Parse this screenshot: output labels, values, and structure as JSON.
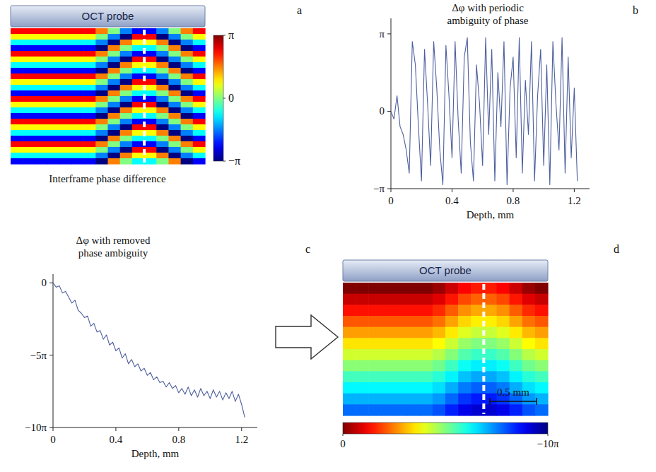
{
  "chart_data": [
    {
      "type": "heatmap",
      "panel_label": "a",
      "probe_label": "OCT probe",
      "caption": "Interframe phase difference",
      "colorbar_lim": [
        -1,
        1
      ],
      "colorbar_ticks": [
        {
          "value": 1,
          "label": "π"
        },
        0,
        {
          "value": -1,
          "label": "−π"
        }
      ],
      "cells": [
        [
          0.75,
          0.75,
          0.75,
          0.75,
          0.75,
          0.75,
          0.75,
          0.5,
          0,
          -0.5,
          -0.75,
          -0.75,
          -0.5,
          0,
          0.5,
          0.75
        ],
        [
          0.25,
          0.25,
          0.25,
          0.25,
          0.25,
          0.25,
          0.25,
          0,
          -0.5,
          -1,
          0.75,
          0.75,
          -1,
          -0.5,
          0,
          0.25
        ],
        [
          -0.25,
          -0.25,
          -0.25,
          -0.25,
          -0.25,
          -0.25,
          -0.25,
          -0.5,
          -1,
          0.5,
          0.25,
          0.25,
          0.5,
          -1,
          -0.5,
          -0.25
        ],
        [
          -0.75,
          -0.75,
          -0.75,
          -0.75,
          -0.75,
          -0.75,
          -0.75,
          -1,
          0.5,
          0,
          -0.25,
          -0.25,
          0,
          0.5,
          -1,
          -0.75
        ],
        [
          0.75,
          0.75,
          0.75,
          0.75,
          0.75,
          0.75,
          0.75,
          0.5,
          0,
          -0.5,
          -0.75,
          -0.75,
          -0.5,
          0,
          0.5,
          0.75
        ],
        [
          0.25,
          0.25,
          0.25,
          0.25,
          0.25,
          0.25,
          0.25,
          0,
          -0.5,
          -1,
          0.75,
          0.75,
          -1,
          -0.5,
          0,
          0.25
        ],
        [
          -0.25,
          -0.25,
          -0.25,
          -0.25,
          -0.25,
          -0.25,
          -0.25,
          -0.5,
          -1,
          0.5,
          0.25,
          0.25,
          0.5,
          -1,
          -0.5,
          -0.25
        ],
        [
          -0.75,
          -0.75,
          -0.75,
          -0.75,
          -0.75,
          -0.75,
          -0.75,
          -1,
          0.5,
          0,
          -0.25,
          -0.25,
          0,
          0.5,
          -1,
          -0.75
        ],
        [
          0.75,
          0.75,
          0.75,
          0.75,
          0.75,
          0.75,
          0.75,
          0.5,
          0,
          -0.5,
          -0.75,
          -0.75,
          -0.5,
          0,
          0.5,
          0.75
        ],
        [
          0.25,
          0.25,
          0.25,
          0.25,
          0.25,
          0.25,
          0.25,
          0,
          -0.5,
          -1,
          0.75,
          0.75,
          -1,
          -0.5,
          0,
          0.25
        ],
        [
          -0.25,
          -0.25,
          -0.25,
          -0.25,
          -0.25,
          -0.25,
          -0.25,
          -0.5,
          -1,
          0.5,
          0.25,
          0.25,
          0.5,
          -1,
          -0.5,
          -0.25
        ],
        [
          -0.75,
          -0.75,
          -0.75,
          -0.75,
          -0.75,
          -0.75,
          -0.75,
          -1,
          0.5,
          0,
          -0.25,
          -0.25,
          0,
          0.5,
          -1,
          -0.75
        ],
        [
          0.75,
          0.75,
          0.75,
          0.75,
          0.75,
          0.75,
          0.75,
          0.5,
          0,
          -0.5,
          -0.75,
          -0.75,
          -0.5,
          0,
          0.5,
          0.75
        ],
        [
          0.25,
          0.25,
          0.25,
          0.25,
          0.25,
          0.25,
          0.25,
          0,
          -0.5,
          -1,
          0.75,
          0.75,
          -1,
          -0.5,
          0,
          0.25
        ],
        [
          -0.25,
          -0.25,
          -0.25,
          -0.25,
          -0.25,
          -0.25,
          -0.25,
          -0.5,
          -1,
          0.5,
          0.25,
          0.25,
          0.5,
          -1,
          -0.5,
          -0.25
        ],
        [
          -0.75,
          -0.75,
          -0.75,
          -0.75,
          -0.75,
          -0.75,
          -0.75,
          -1,
          0.5,
          0,
          -0.25,
          -0.25,
          0,
          0.5,
          -1,
          -0.75
        ],
        [
          0.75,
          0.75,
          0.75,
          0.75,
          0.75,
          0.75,
          0.75,
          0.5,
          0,
          -0.5,
          -0.75,
          -0.75,
          -0.5,
          0,
          0.5,
          0.75
        ],
        [
          0.25,
          0.25,
          0.25,
          0.25,
          0.25,
          0.25,
          0.25,
          0,
          -0.5,
          -1,
          0.75,
          0.75,
          -1,
          -0.5,
          0,
          0.25
        ],
        [
          -0.25,
          -0.25,
          -0.25,
          -0.25,
          -0.25,
          -0.25,
          -0.25,
          -0.5,
          -1,
          0.5,
          0.25,
          0.25,
          0.5,
          -1,
          -0.5,
          -0.25
        ],
        [
          -0.75,
          -0.75,
          -0.75,
          -0.75,
          -0.75,
          -0.75,
          -0.75,
          -1,
          0.5,
          0,
          -0.25,
          -0.25,
          0,
          0.5,
          -1,
          -0.75
        ],
        [
          0.75,
          0.75,
          0.75,
          0.75,
          0.75,
          0.75,
          0.75,
          0.5,
          0,
          -0.5,
          -0.75,
          -0.75,
          -0.5,
          0,
          0.5,
          0.75
        ],
        [
          0.25,
          0.25,
          0.25,
          0.25,
          0.25,
          0.25,
          0.25,
          0,
          -0.5,
          -1,
          0.75,
          0.75,
          -1,
          -0.5,
          0,
          0.25
        ],
        [
          -0.25,
          -0.25,
          -0.25,
          -0.25,
          -0.25,
          -0.25,
          -0.25,
          -0.5,
          -1,
          0.5,
          0.25,
          0.25,
          0.5,
          -1,
          -0.5,
          -0.25
        ],
        [
          -0.75,
          -0.75,
          -0.75,
          -0.75,
          -0.75,
          -0.75,
          -0.75,
          -1,
          0.5,
          0,
          -0.25,
          -0.25,
          0,
          0.5,
          -1,
          -0.75
        ]
      ]
    },
    {
      "type": "line",
      "panel_label": "b",
      "title": "Δφ with periodic ambiguity of phase",
      "x_label": "Depth, mm",
      "color": "#4d5f9e",
      "xlim": [
        0,
        1.3
      ],
      "xticks": [
        0,
        0.4,
        0.8,
        1.2
      ],
      "ylim": [
        -1,
        1.2
      ],
      "yticks": [
        {
          "value": 1,
          "label": "π"
        },
        0,
        {
          "value": -1,
          "label": "−π"
        }
      ],
      "x": [
        0,
        0.02,
        0.04,
        0.06,
        0.08,
        0.1,
        0.12,
        0.14,
        0.16,
        0.18,
        0.2,
        0.22,
        0.24,
        0.26,
        0.28,
        0.3,
        0.32,
        0.34,
        0.36,
        0.38,
        0.4,
        0.42,
        0.44,
        0.46,
        0.48,
        0.5,
        0.52,
        0.54,
        0.56,
        0.58,
        0.6,
        0.62,
        0.64,
        0.66,
        0.68,
        0.7,
        0.72,
        0.74,
        0.76,
        0.78,
        0.8,
        0.82,
        0.84,
        0.86,
        0.88,
        0.9,
        0.92,
        0.94,
        0.96,
        0.98,
        1,
        1.02,
        1.04,
        1.06,
        1.08,
        1.1,
        1.12,
        1.14,
        1.16,
        1.18,
        1.2,
        1.22
      ],
      "values": [
        0,
        -0.1,
        0.2,
        -0.2,
        -0.3,
        -0.5,
        -0.8,
        0.9,
        0.6,
        -0.2,
        -0.9,
        0.8,
        0.1,
        -0.7,
        0.9,
        0.3,
        -0.5,
        -0.95,
        0.85,
        0.2,
        -0.6,
        0.9,
        -0.1,
        -0.8,
        0.7,
        0.95,
        -0.4,
        -0.9,
        0.6,
        0.1,
        -0.7,
        0.95,
        -0.3,
        0.8,
        -0.9,
        0.5,
        -0.2,
        0.9,
        -0.95,
        0.3,
        0.7,
        -0.6,
        0.95,
        -0.8,
        0.4,
        -0.3,
        0.9,
        -0.9,
        0.2,
        0.8,
        -0.7,
        0.6,
        -0.95,
        0.9,
        0.1,
        -0.5,
        0.95,
        -0.8,
        0.7,
        -0.6,
        0.3,
        -0.9
      ]
    },
    {
      "type": "line",
      "panel_label": "c",
      "title": "Δφ with removed phase ambiguity",
      "x_label": "Depth, mm",
      "color": "#4d5f9e",
      "xlim": [
        0,
        1.3
      ],
      "xticks": [
        0,
        0.4,
        0.8,
        1.2
      ],
      "ylim": [
        -10,
        0.6
      ],
      "yticks": [
        0,
        {
          "value": -5,
          "label": "−5π"
        },
        {
          "value": -10,
          "label": "−10π"
        }
      ],
      "x": [
        0,
        0.02,
        0.04,
        0.06,
        0.08,
        0.1,
        0.12,
        0.14,
        0.16,
        0.18,
        0.2,
        0.22,
        0.24,
        0.26,
        0.28,
        0.3,
        0.32,
        0.34,
        0.36,
        0.38,
        0.4,
        0.42,
        0.44,
        0.46,
        0.48,
        0.5,
        0.52,
        0.54,
        0.56,
        0.58,
        0.6,
        0.62,
        0.64,
        0.66,
        0.68,
        0.7,
        0.72,
        0.74,
        0.76,
        0.78,
        0.8,
        0.82,
        0.84,
        0.86,
        0.88,
        0.9,
        0.92,
        0.94,
        0.96,
        0.98,
        1,
        1.02,
        1.04,
        1.06,
        1.08,
        1.1,
        1.12,
        1.14,
        1.16,
        1.18,
        1.2,
        1.22
      ],
      "values": [
        0,
        -0.3,
        -0.2,
        -0.7,
        -0.6,
        -1,
        -1.4,
        -1.2,
        -1.9,
        -2.1,
        -2.4,
        -2.3,
        -3,
        -2.8,
        -3.4,
        -3.3,
        -3.9,
        -3.6,
        -4.3,
        -4.1,
        -4.7,
        -4.5,
        -5.2,
        -4.9,
        -5.6,
        -5.3,
        -5.8,
        -5.6,
        -6.1,
        -5.9,
        -6.4,
        -6.2,
        -6.7,
        -6.5,
        -6.9,
        -6.8,
        -7.2,
        -6.9,
        -7.3,
        -7.1,
        -7.6,
        -7.3,
        -7.7,
        -7.2,
        -7.8,
        -7.4,
        -7.9,
        -7.3,
        -7.8,
        -7.5,
        -8,
        -7.4,
        -7.9,
        -7.5,
        -8.1,
        -7.6,
        -8,
        -7.5,
        -8.2,
        -7.7,
        -8.4,
        -9.3
      ]
    },
    {
      "type": "heatmap",
      "panel_label": "d",
      "probe_label": "OCT probe",
      "scale_bar_label": "0.5 mm",
      "colorbar_lim": [
        -10,
        0
      ],
      "colorbar_ticks": [
        0,
        {
          "value": -10,
          "label": "−10π"
        }
      ],
      "cells": [
        [
          0,
          0,
          0,
          0,
          0,
          0,
          0,
          -0.25,
          -0.75,
          -1.25,
          -1.5,
          -1.5,
          -1.25,
          -0.75,
          -0.25,
          0
        ],
        [
          -0.7,
          -0.7,
          -0.7,
          -0.7,
          -0.7,
          -0.7,
          -0.7,
          -0.95,
          -1.45,
          -1.95,
          -2.2,
          -2.2,
          -1.95,
          -1.45,
          -0.95,
          -0.7
        ],
        [
          -1.4,
          -1.4,
          -1.4,
          -1.4,
          -1.4,
          -1.4,
          -1.4,
          -1.65,
          -2.15,
          -2.65,
          -2.9,
          -2.9,
          -2.65,
          -2.15,
          -1.65,
          -1.4
        ],
        [
          -2.1,
          -2.1,
          -2.1,
          -2.1,
          -2.1,
          -2.1,
          -2.1,
          -2.35,
          -2.85,
          -3.35,
          -3.6,
          -3.6,
          -3.35,
          -2.85,
          -2.35,
          -2.1
        ],
        [
          -2.8,
          -2.8,
          -2.8,
          -2.8,
          -2.8,
          -2.8,
          -2.8,
          -3.05,
          -3.55,
          -4.05,
          -4.3,
          -4.3,
          -4.05,
          -3.55,
          -3.05,
          -2.8
        ],
        [
          -3.5,
          -3.5,
          -3.5,
          -3.5,
          -3.5,
          -3.5,
          -3.5,
          -3.75,
          -4.25,
          -4.75,
          -5,
          -5,
          -4.75,
          -4.25,
          -3.75,
          -3.5
        ],
        [
          -4.2,
          -4.2,
          -4.2,
          -4.2,
          -4.2,
          -4.2,
          -4.2,
          -4.45,
          -4.95,
          -5.45,
          -5.7,
          -5.7,
          -5.45,
          -4.95,
          -4.45,
          -4.2
        ],
        [
          -4.9,
          -4.9,
          -4.9,
          -4.9,
          -4.9,
          -4.9,
          -4.9,
          -5.15,
          -5.65,
          -6.15,
          -6.4,
          -6.4,
          -6.15,
          -5.65,
          -5.15,
          -4.9
        ],
        [
          -5.6,
          -5.6,
          -5.6,
          -5.6,
          -5.6,
          -5.6,
          -5.6,
          -5.85,
          -6.35,
          -6.85,
          -7.1,
          -7.1,
          -6.85,
          -6.35,
          -5.85,
          -5.6
        ],
        [
          -6.3,
          -6.3,
          -6.3,
          -6.3,
          -6.3,
          -6.3,
          -6.3,
          -6.55,
          -7.05,
          -7.55,
          -7.8,
          -7.8,
          -7.55,
          -7.05,
          -6.55,
          -6.3
        ],
        [
          -7,
          -7,
          -7,
          -7,
          -7,
          -7,
          -7,
          -7.25,
          -7.75,
          -8.25,
          -8.5,
          -8.5,
          -8.25,
          -7.75,
          -7.25,
          -7
        ],
        [
          -7.7,
          -7.7,
          -7.7,
          -7.7,
          -7.7,
          -7.7,
          -7.7,
          -7.95,
          -8.45,
          -8.95,
          -9.2,
          -9.2,
          -8.95,
          -8.45,
          -7.95,
          -7.7
        ]
      ]
    }
  ]
}
